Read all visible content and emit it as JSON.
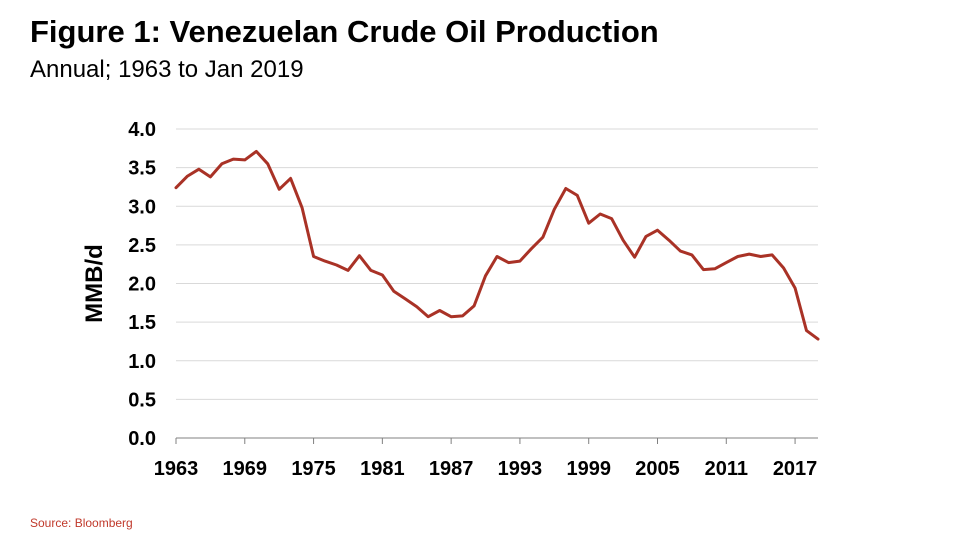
{
  "title": "Figure 1: Venezuelan Crude Oil Production",
  "subtitle": "Annual; 1963 to Jan 2019",
  "source": "Source: Bloomberg",
  "colors": {
    "line": "#a93226",
    "source_text": "#c0392b",
    "grid": "#d9d9d9"
  },
  "chart_data": {
    "type": "line",
    "title": "Figure 1: Venezuelan Crude Oil Production",
    "subtitle": "Annual; 1963 to Jan 2019",
    "xlabel": "",
    "ylabel": "MMB/d",
    "xlim": [
      1963,
      2019
    ],
    "ylim": [
      0,
      4
    ],
    "xticks": [
      "1963",
      "1969",
      "1975",
      "1981",
      "1987",
      "1993",
      "1999",
      "2005",
      "2011",
      "2017"
    ],
    "yticks": [
      "0.0",
      "0.5",
      "1.0",
      "1.5",
      "2.0",
      "2.5",
      "3.0",
      "3.5",
      "4.0"
    ],
    "grid": "horizontal",
    "legend": "none",
    "series": [
      {
        "x": [
          1963,
          1964,
          1965,
          1966,
          1967,
          1968,
          1969,
          1970,
          1971,
          1972,
          1973,
          1974,
          1975,
          1976,
          1977,
          1978,
          1979,
          1980,
          1981,
          1982,
          1983,
          1984,
          1985,
          1986,
          1987,
          1988,
          1989,
          1990,
          1991,
          1992,
          1993,
          1994,
          1995,
          1996,
          1997,
          1998,
          1999,
          2000,
          2001,
          2002,
          2003,
          2004,
          2005,
          2006,
          2007,
          2008,
          2009,
          2010,
          2011,
          2012,
          2013,
          2014,
          2015,
          2016,
          2017,
          2018,
          2019
        ],
        "y": [
          3.24,
          3.39,
          3.48,
          3.38,
          3.55,
          3.61,
          3.6,
          3.71,
          3.55,
          3.22,
          3.36,
          2.98,
          2.35,
          2.29,
          2.24,
          2.17,
          2.36,
          2.17,
          2.11,
          1.9,
          1.8,
          1.7,
          1.57,
          1.65,
          1.57,
          1.58,
          1.71,
          2.1,
          2.35,
          2.27,
          2.29,
          2.45,
          2.6,
          2.96,
          3.23,
          3.14,
          2.78,
          2.9,
          2.84,
          2.56,
          2.34,
          2.61,
          2.69,
          2.56,
          2.42,
          2.37,
          2.18,
          2.19,
          2.27,
          2.35,
          2.38,
          2.35,
          2.37,
          2.2,
          1.94,
          1.39,
          1.28
        ]
      }
    ]
  }
}
